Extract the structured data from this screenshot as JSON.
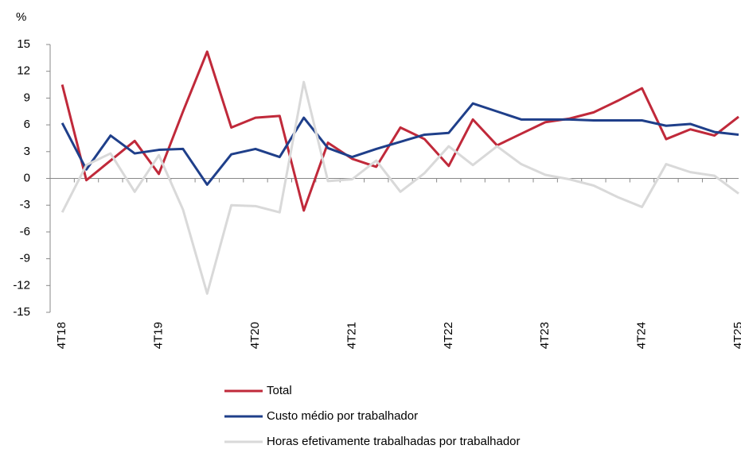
{
  "chart_data": {
    "type": "line",
    "ylabel": "%",
    "categories": [
      "4T18",
      null,
      null,
      null,
      "4T19",
      null,
      null,
      null,
      "4T20",
      null,
      null,
      null,
      "4T21",
      null,
      null,
      null,
      "4T22",
      null,
      null,
      null,
      "4T23",
      null,
      null,
      null,
      "4T24",
      null,
      null,
      null,
      "4T25"
    ],
    "series": [
      {
        "name": "Total",
        "color": "#c0293a",
        "values": [
          10.5,
          -0.2,
          2,
          4.2,
          0.5,
          7.5,
          14.2,
          5.7,
          6.8,
          7.0,
          -3.6,
          4,
          2.2,
          1.3,
          5.7,
          4.4,
          1.4,
          6.6,
          3.7,
          5,
          6.3,
          6.7,
          7.4,
          8.7,
          10.1,
          4.4,
          5.5,
          4.8,
          6.9
        ]
      },
      {
        "name": "Custo médio por trabalhador",
        "color": "#1f3f8a",
        "values": [
          6.2,
          1.0,
          4.8,
          2.8,
          3.2,
          3.3,
          -0.7,
          2.7,
          3.3,
          2.4,
          6.8,
          3.4,
          2.4,
          3.3,
          4.1,
          4.9,
          5.1,
          8.4,
          7.5,
          6.6,
          6.6,
          6.6,
          6.5,
          6.5,
          6.5,
          5.9,
          6.1,
          5.2,
          4.9
        ]
      },
      {
        "name": "Horas efetivamente trabalhadas por trabalhador",
        "color": "#d9d9d9",
        "values": [
          -3.8,
          1.5,
          2.8,
          -1.5,
          2.6,
          -3.5,
          -12.9,
          -3.0,
          -3.1,
          -3.8,
          10.8,
          -0.3,
          -0.1,
          2.0,
          -1.5,
          0.6,
          3.6,
          1.5,
          3.6,
          1.6,
          0.4,
          -0.1,
          -0.8,
          -2.1,
          -3.2,
          1.6,
          0.7,
          0.3,
          -1.7
        ]
      }
    ],
    "ylim": [
      -15,
      15
    ],
    "yticks": [
      -15,
      -12,
      -9,
      -6,
      -3,
      0,
      3,
      6,
      9,
      12,
      15
    ],
    "grid": false
  }
}
